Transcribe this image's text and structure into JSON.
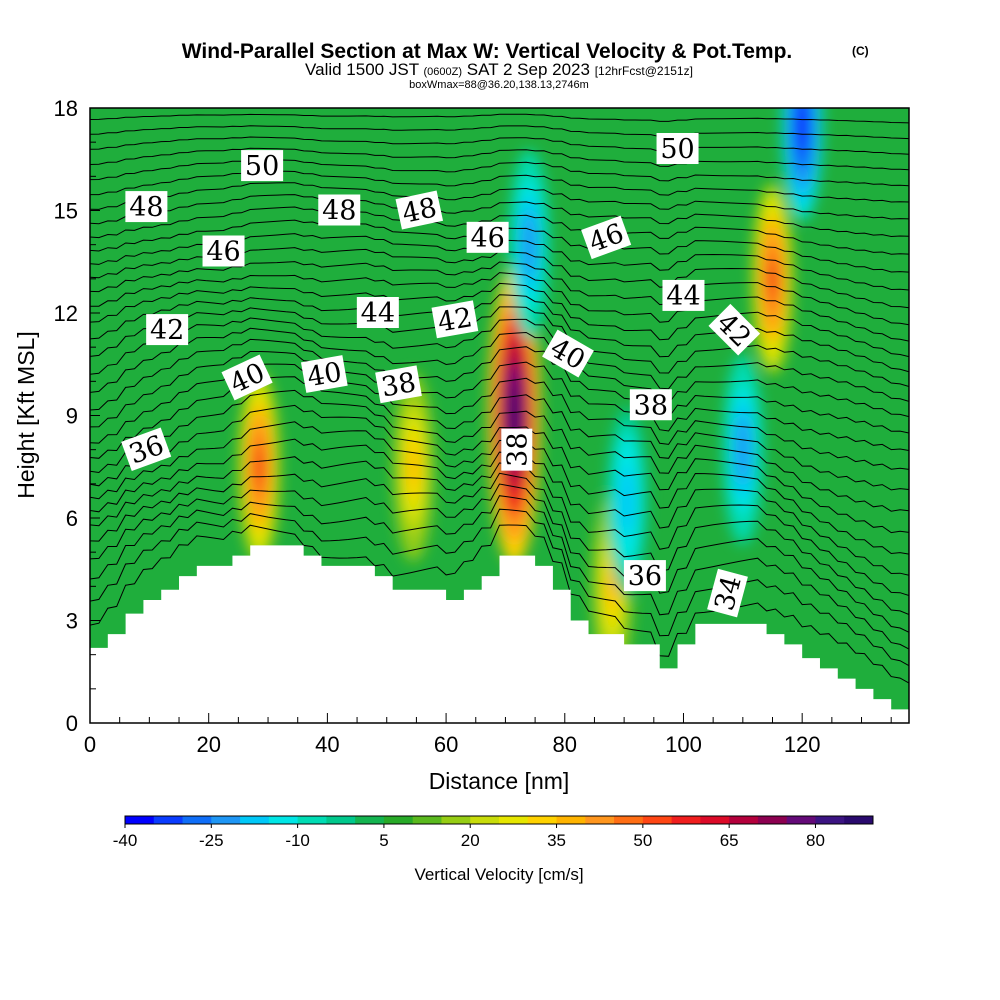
{
  "title": {
    "main": "Wind-Parallel Section at Max W: Vertical Velocity & Pot.Temp.",
    "copyright": "(C)",
    "valid_prefix": "Valid 1500 JST",
    "valid_utc": "(0600Z)",
    "valid_date": "SAT 2 Sep 2023",
    "forecast": "[12hrFcst@2151z]",
    "box_info": "boxWmax=88@36.20,138.13,2746m"
  },
  "chart_data": {
    "type": "heatmap",
    "title": "Wind-Parallel Section at Max W: Vertical Velocity & Pot.Temp.",
    "xlabel": "Distance [nm]",
    "ylabel": "Height [Kft MSL]",
    "xlim": [
      0,
      138
    ],
    "ylim": [
      0,
      18
    ],
    "x_ticks": [
      0,
      20,
      40,
      60,
      80,
      100,
      120
    ],
    "x_tick_labels": [
      "0",
      "20",
      "40",
      "60",
      "80",
      "100",
      "120"
    ],
    "y_ticks": [
      0,
      3,
      6,
      9,
      12,
      15,
      18
    ],
    "y_tick_labels": [
      "0",
      "3",
      "6",
      "9",
      "12",
      "15",
      "18"
    ],
    "colorbar": {
      "label": "Vertical Velocity [cm/s]",
      "range": [
        -40,
        90
      ],
      "step": 5,
      "tick_values": [
        -40,
        -25,
        -10,
        5,
        20,
        35,
        50,
        65,
        80
      ],
      "tick_labels": [
        "-40",
        "-25",
        "-10",
        "5",
        "20",
        "35",
        "50",
        "65",
        "80"
      ],
      "colors": [
        "#0000ff",
        "#0a3cff",
        "#0f6ef8",
        "#1e96f5",
        "#00c8f8",
        "#00e6e6",
        "#00dcb4",
        "#00c88c",
        "#14b450",
        "#28aa28",
        "#5ab91e",
        "#96cd14",
        "#c8dc0a",
        "#e6e600",
        "#ffd200",
        "#ffb400",
        "#ff961e",
        "#ff6e14",
        "#ff4614",
        "#f01e1e",
        "#dc0a28",
        "#b4003c",
        "#8c0050",
        "#640a78",
        "#3c1482",
        "#2a0a6e"
      ]
    },
    "terrain_profile": {
      "x": [
        0,
        3,
        6,
        9,
        12,
        15,
        18,
        21,
        24,
        27,
        30,
        33,
        36,
        39,
        42,
        45,
        48,
        51,
        54,
        57,
        60,
        63,
        66,
        69,
        72,
        75,
        78,
        81,
        84,
        87,
        90,
        93,
        96,
        99,
        102,
        105,
        108,
        111,
        114,
        117,
        120,
        123,
        126,
        129,
        132,
        135,
        138
      ],
      "height_kft": [
        2.2,
        2.6,
        3.2,
        3.6,
        3.9,
        4.3,
        4.6,
        4.6,
        4.9,
        5.2,
        5.2,
        5.2,
        4.9,
        4.6,
        4.6,
        4.6,
        4.3,
        3.9,
        3.9,
        3.9,
        3.6,
        3.9,
        4.3,
        4.9,
        4.9,
        4.6,
        3.9,
        3.0,
        2.6,
        2.6,
        2.3,
        2.3,
        1.6,
        2.3,
        2.9,
        2.9,
        2.9,
        2.9,
        2.6,
        2.3,
        1.9,
        1.6,
        1.3,
        1.0,
        0.7,
        0.4,
        0.3
      ]
    },
    "velocity_features": [
      {
        "x": 28.5,
        "height_kft": 7.5,
        "value": 55
      },
      {
        "x": 54.5,
        "height_kft": 7.5,
        "value": 35
      },
      {
        "x": 71.5,
        "height_kft": 9.0,
        "value": 88
      },
      {
        "x": 115,
        "height_kft": 13.0,
        "value": 55
      },
      {
        "x": 88,
        "height_kft": 4.0,
        "value": 35
      },
      {
        "x": 74,
        "height_kft": 14.0,
        "value": -25
      },
      {
        "x": 90.5,
        "height_kft": 6.5,
        "value": -20
      },
      {
        "x": 110,
        "height_kft": 8.0,
        "value": -25
      },
      {
        "x": 120,
        "height_kft": 17.5,
        "value": -40
      }
    ],
    "contour_labels": [
      {
        "text": "50",
        "x": 29,
        "height_kft": 16.3,
        "angle": 0
      },
      {
        "text": "50",
        "x": 99,
        "height_kft": 16.8,
        "angle": 0
      },
      {
        "text": "48",
        "x": 9.5,
        "height_kft": 15.1,
        "angle": 0
      },
      {
        "text": "48",
        "x": 42,
        "height_kft": 15.0,
        "angle": 0
      },
      {
        "text": "48",
        "x": 55.5,
        "height_kft": 15.0,
        "angle": -12
      },
      {
        "text": "46",
        "x": 22.5,
        "height_kft": 13.8,
        "angle": 0
      },
      {
        "text": "46",
        "x": 67,
        "height_kft": 14.2,
        "angle": 0
      },
      {
        "text": "46",
        "x": 87,
        "height_kft": 14.2,
        "angle": -20
      },
      {
        "text": "44",
        "x": 48.5,
        "height_kft": 12.0,
        "angle": 0
      },
      {
        "text": "44",
        "x": 100,
        "height_kft": 12.5,
        "angle": 0
      },
      {
        "text": "42",
        "x": 13,
        "height_kft": 11.5,
        "angle": 0
      },
      {
        "text": "42",
        "x": 61.5,
        "height_kft": 11.8,
        "angle": -10
      },
      {
        "text": "42",
        "x": 108.5,
        "height_kft": 11.5,
        "angle": 45
      },
      {
        "text": "40",
        "x": 26.5,
        "height_kft": 10.1,
        "angle": -25
      },
      {
        "text": "40",
        "x": 39.5,
        "height_kft": 10.2,
        "angle": -10
      },
      {
        "text": "40",
        "x": 80.5,
        "height_kft": 10.8,
        "angle": 30
      },
      {
        "text": "38",
        "x": 52,
        "height_kft": 9.9,
        "angle": -10
      },
      {
        "text": "38",
        "x": 94.5,
        "height_kft": 9.3,
        "angle": 0
      },
      {
        "text": "38",
        "x": 72,
        "height_kft": 8.0,
        "angle": -90
      },
      {
        "text": "36",
        "x": 9.5,
        "height_kft": 8.0,
        "angle": -20
      },
      {
        "text": "36",
        "x": 93.5,
        "height_kft": 4.3,
        "angle": 0
      },
      {
        "text": "34",
        "x": 107.5,
        "height_kft": 3.8,
        "angle": -75
      }
    ]
  }
}
